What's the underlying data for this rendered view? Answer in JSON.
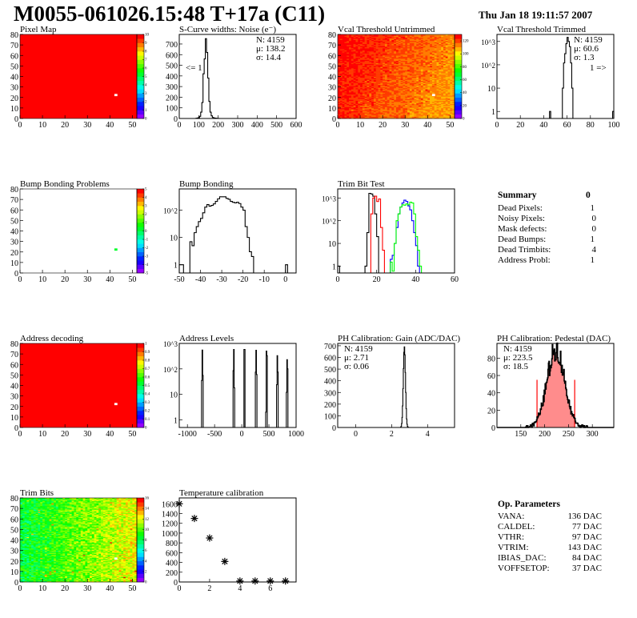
{
  "header": {
    "title": "M0055-061026.15:48 T+17a (C11)",
    "date": "Thu Jan 18 19:11:57 2007"
  },
  "colors": {
    "red": "#ff0000",
    "blue": "#0000ff",
    "green": "#00ff00",
    "black": "#000000"
  },
  "chart_data": [
    {
      "id": "pixel-map",
      "type": "heatmap",
      "title": "Pixel Map",
      "xlim": [
        0,
        52
      ],
      "ylim": [
        0,
        80
      ],
      "xticks": [
        0,
        10,
        20,
        30,
        40,
        50
      ],
      "yticks": [
        0,
        10,
        20,
        30,
        40,
        50,
        60,
        70,
        80
      ],
      "zlim": [
        0,
        10
      ],
      "zticks": [
        0,
        1,
        2,
        3,
        4,
        5,
        6,
        7,
        8,
        9,
        10
      ],
      "fill_value": 10,
      "dead_pixels": [
        [
          42,
          22
        ]
      ],
      "special_pixels": []
    },
    {
      "id": "s-curve-widths",
      "type": "histogram",
      "title": "S-Curve widths: Noise (e⁻)",
      "xlim": [
        0,
        600
      ],
      "ylim": [
        0,
        790
      ],
      "log": false,
      "xticks": [
        0,
        100,
        200,
        300,
        400,
        500,
        600
      ],
      "yticks": [
        0,
        100,
        200,
        300,
        400,
        500,
        600,
        700
      ],
      "bin_width": 6,
      "series": [
        {
          "color": "#000000",
          "start": 86,
          "values": [
            2,
            4,
            8,
            20,
            60,
            150,
            420,
            560,
            750,
            620,
            380,
            160,
            60,
            25,
            10,
            5,
            3,
            2,
            1,
            1
          ]
        }
      ],
      "stats": [
        "N: 4159",
        "μ: 138.2",
        "σ: 14.4"
      ],
      "annotation": "<= 1"
    },
    {
      "id": "vcal-threshold-untrimmed",
      "type": "heatmap",
      "title": "Vcal Threshold Untrimmed",
      "xlim": [
        0,
        52
      ],
      "ylim": [
        0,
        80
      ],
      "xticks": [
        0,
        10,
        20,
        30,
        40,
        50
      ],
      "yticks": [
        0,
        10,
        20,
        30,
        40,
        50,
        60,
        70,
        80
      ],
      "zlim": [
        0,
        130
      ],
      "zticks": [
        0,
        20,
        40,
        60,
        80,
        100,
        120
      ],
      "pattern": {
        "left": 123,
        "right": 108,
        "top_boost": 5,
        "noise": 5
      },
      "dead_pixels": [
        [
          42,
          22
        ]
      ]
    },
    {
      "id": "vcal-threshold-trimmed",
      "type": "histogram",
      "title": "Vcal Threshold Trimmed",
      "xlim": [
        0,
        100
      ],
      "ylim": [
        0.5,
        2000
      ],
      "log": true,
      "xticks": [
        0,
        20,
        40,
        60,
        80,
        100
      ],
      "yticks": [
        1,
        10,
        100,
        1000
      ],
      "ytick_labels": [
        "1",
        "10",
        "10^2",
        "10^3"
      ],
      "bin_width": 1,
      "series": [
        {
          "color": "#000000",
          "bins": [
            [
              45,
              1
            ],
            [
              56,
              10
            ],
            [
              57,
              120
            ],
            [
              58,
              300
            ],
            [
              59,
              800
            ],
            [
              60,
              1500
            ],
            [
              61,
              1000
            ],
            [
              62,
              600
            ],
            [
              63,
              120
            ],
            [
              64,
              10
            ],
            [
              99,
              1
            ]
          ]
        }
      ],
      "stats": [
        "N: 4159",
        "μ: 60.6",
        "σ:  1.3"
      ],
      "annotation": "1 =>"
    },
    {
      "id": "bump-bonding-problems",
      "type": "heatmap",
      "title": "Bump Bonding Problems",
      "xlim": [
        0,
        52
      ],
      "ylim": [
        0,
        80
      ],
      "xticks": [
        0,
        10,
        20,
        30,
        40,
        50
      ],
      "yticks": [
        0,
        10,
        20,
        30,
        40,
        50,
        60,
        70,
        80
      ],
      "zlim": [
        -5,
        5
      ],
      "zticks": [
        -5,
        -4,
        -3,
        -2,
        -1,
        0,
        1,
        2,
        3,
        4,
        5
      ],
      "empty": true,
      "special_pixels": [
        [
          42,
          22,
          0
        ]
      ],
      "dead_pixels": []
    },
    {
      "id": "bump-bonding",
      "type": "histogram",
      "title": "Bump Bonding",
      "xlim": [
        -50,
        5
      ],
      "ylim": [
        0.5,
        600
      ],
      "log": true,
      "xticks": [
        -50,
        -40,
        -30,
        -20,
        -10,
        0
      ],
      "yticks": [
        1,
        10,
        100
      ],
      "ytick_labels": [
        "1",
        "10",
        "10^2"
      ],
      "bin_width": 1,
      "series": [
        {
          "color": "#000000",
          "bins": [
            [
              -50,
              1
            ],
            [
              -49,
              1
            ],
            [
              -45,
              7
            ],
            [
              -44,
              5
            ],
            [
              -43,
              15
            ],
            [
              -42,
              25
            ],
            [
              -41,
              38
            ],
            [
              -40,
              50
            ],
            [
              -39,
              80
            ],
            [
              -38,
              130
            ],
            [
              -37,
              160
            ],
            [
              -36,
              140
            ],
            [
              -35,
              150
            ],
            [
              -34,
              170
            ],
            [
              -33,
              210
            ],
            [
              -32,
              260
            ],
            [
              -31,
              310
            ],
            [
              -30,
              310
            ],
            [
              -29,
              310
            ],
            [
              -28,
              270
            ],
            [
              -27,
              250
            ],
            [
              -26,
              210
            ],
            [
              -25,
              195
            ],
            [
              -24,
              185
            ],
            [
              -23,
              195
            ],
            [
              -22,
              175
            ],
            [
              -21,
              130
            ],
            [
              -20,
              100
            ],
            [
              -19,
              25
            ],
            [
              -18,
              10
            ],
            [
              -17,
              3
            ],
            [
              -16,
              2
            ],
            [
              0,
              1
            ]
          ]
        }
      ]
    },
    {
      "id": "trim-bit-test",
      "type": "histogram",
      "title": "Trim Bit Test",
      "xlim": [
        0,
        60
      ],
      "ylim": [
        0.5,
        2500
      ],
      "log": true,
      "xticks": [
        0,
        20,
        40,
        60
      ],
      "yticks": [
        1,
        10,
        100,
        1000
      ],
      "ytick_labels": [
        "1",
        "10",
        "10^2",
        "10^3"
      ],
      "bin_width": 1,
      "series": [
        {
          "color": "#000000",
          "bins": [
            [
              0,
              1
            ],
            [
              14,
              1
            ],
            [
              15,
              30
            ],
            [
              16,
              1600
            ],
            [
              17,
              1500
            ],
            [
              18,
              1200
            ],
            [
              19,
              200
            ],
            [
              20,
              20
            ]
          ]
        },
        {
          "color": "#ff0000",
          "bins": [
            [
              17,
              200
            ],
            [
              18,
              1000
            ],
            [
              19,
              1200
            ],
            [
              20,
              700
            ],
            [
              21,
              900
            ],
            [
              22,
              50
            ],
            [
              23,
              5
            ]
          ]
        },
        {
          "color": "#0000ff",
          "bins": [
            [
              27,
              2
            ],
            [
              28,
              3
            ],
            [
              29,
              10
            ],
            [
              30,
              50
            ],
            [
              31,
              200
            ],
            [
              32,
              400
            ],
            [
              33,
              600
            ],
            [
              34,
              800
            ],
            [
              35,
              700
            ],
            [
              36,
              450
            ],
            [
              37,
              300
            ],
            [
              38,
              100
            ],
            [
              39,
              30
            ],
            [
              40,
              8
            ],
            [
              41,
              1
            ]
          ]
        },
        {
          "color": "#00ff00",
          "bins": [
            [
              27,
              1.5
            ],
            [
              28,
              0.6
            ],
            [
              29,
              10
            ],
            [
              30,
              100
            ],
            [
              31,
              200
            ],
            [
              32,
              400
            ],
            [
              33,
              500
            ],
            [
              34,
              480
            ],
            [
              35,
              550
            ],
            [
              36,
              500
            ],
            [
              37,
              650
            ],
            [
              38,
              600
            ],
            [
              39,
              200
            ],
            [
              40,
              20
            ],
            [
              41,
              5
            ],
            [
              42,
              1
            ]
          ]
        }
      ]
    },
    {
      "id": "address-decoding",
      "type": "heatmap",
      "title": "Address decoding",
      "xlim": [
        0,
        52
      ],
      "ylim": [
        0,
        80
      ],
      "xticks": [
        0,
        10,
        20,
        30,
        40,
        50
      ],
      "yticks": [
        0,
        10,
        20,
        30,
        40,
        50,
        60,
        70,
        80
      ],
      "zlim": [
        0,
        1
      ],
      "zticks": [
        0,
        0.1,
        0.2,
        0.3,
        0.4,
        0.5,
        0.6,
        0.7,
        0.8,
        0.9,
        1
      ],
      "fill_value": 1,
      "dead_pixels": [
        [
          42,
          22
        ]
      ],
      "special_pixels": []
    },
    {
      "id": "address-levels",
      "type": "histogram",
      "title": "Address Levels",
      "xlim": [
        -1150,
        1000
      ],
      "ylim": [
        0.5,
        1000
      ],
      "log": true,
      "xticks": [
        -1000,
        -500,
        0,
        500,
        1000
      ],
      "yticks": [
        1,
        10,
        100,
        1000
      ],
      "ytick_labels": [
        "1",
        "10",
        "10^2",
        "10^3"
      ],
      "bin_width": 10,
      "series": [
        {
          "color": "#000000",
          "bins": [
            [
              -740,
              35
            ],
            [
              -730,
              550
            ],
            [
              -720,
              55
            ],
            [
              -160,
              85
            ],
            [
              -150,
              580
            ],
            [
              -140,
              18
            ],
            [
              40,
              580
            ],
            [
              50,
              580
            ],
            [
              250,
              75
            ],
            [
              260,
              540
            ],
            [
              270,
              60
            ],
            [
              440,
              2
            ],
            [
              450,
              500
            ],
            [
              460,
              330
            ],
            [
              640,
              24
            ],
            [
              650,
              330
            ],
            [
              660,
              75
            ],
            [
              820,
              12
            ],
            [
              830,
              230
            ],
            [
              840,
              100
            ]
          ]
        }
      ]
    },
    {
      "id": "ph-calibration-gain",
      "type": "histogram",
      "title": "PH Calibration: Gain (ADC/DAC)",
      "xlim": [
        -1,
        5.5
      ],
      "ylim": [
        0,
        720
      ],
      "log": false,
      "xticks": [
        0,
        2,
        4
      ],
      "yticks": [
        0,
        100,
        200,
        300,
        400,
        500,
        600,
        700
      ],
      "bin_width": 0.025,
      "gaussian": {
        "n": 4159,
        "mean": 2.71,
        "sigma": 0.06,
        "range": [
          2.5,
          2.95
        ]
      },
      "series": [
        {
          "color": "#000000"
        }
      ],
      "stats": [
        "N: 4159",
        "μ: 2.71",
        "σ: 0.06"
      ],
      "stats_pos": "top-left"
    },
    {
      "id": "ph-calibration-pedestal",
      "type": "histogram",
      "title": "PH Calibration: Pedestal (DAC)",
      "xlim": [
        100,
        345
      ],
      "ylim": [
        0,
        97
      ],
      "log": false,
      "xticks": [
        150,
        200,
        250,
        300
      ],
      "yticks": [
        0,
        20,
        40,
        60,
        80
      ],
      "bin_width": 1,
      "gaussian": {
        "n": 4159,
        "mean": 223.5,
        "sigma": 18.5,
        "range": [
          160,
          290
        ]
      },
      "fit_range": [
        184,
        263
      ],
      "fit_line_height": 55,
      "series": [
        {
          "color": "#000000"
        }
      ],
      "stats": [
        "N: 4159",
        "μ: 223.5",
        "σ: 18.5"
      ],
      "stats_colors": [
        "#000000",
        "#ff0000",
        "#ff0000"
      ],
      "stats_pos": "top-left"
    },
    {
      "id": "trim-bits",
      "type": "heatmap",
      "title": "Trim Bits",
      "xlim": [
        0,
        52
      ],
      "ylim": [
        0,
        80
      ],
      "xticks": [
        0,
        10,
        20,
        30,
        40,
        50
      ],
      "yticks": [
        0,
        10,
        20,
        30,
        40,
        50,
        60,
        70,
        80
      ],
      "zlim": [
        0,
        16
      ],
      "zticks": [
        0,
        2,
        4,
        6,
        8,
        10,
        12,
        14,
        16
      ],
      "pattern": {
        "left": 8.3,
        "right": 12.2,
        "top_boost": 0,
        "noise": 1.6
      },
      "dead_pixels": [
        [
          42,
          22
        ]
      ]
    },
    {
      "id": "temperature-calibration",
      "type": "scatter",
      "title": "Temperature calibration",
      "xlim": [
        0,
        7.7
      ],
      "ylim": [
        0,
        1720
      ],
      "log": false,
      "xticks": [
        0,
        2,
        4,
        6
      ],
      "yticks": [
        0,
        200,
        400,
        600,
        800,
        1000,
        1200,
        1400,
        1600
      ],
      "points": [
        [
          0,
          1600
        ],
        [
          1,
          1300
        ],
        [
          2,
          900
        ],
        [
          3,
          420
        ],
        [
          4,
          20
        ],
        [
          5,
          20
        ],
        [
          6,
          20
        ],
        [
          7,
          20
        ]
      ]
    }
  ],
  "summary": {
    "title": "Summary",
    "total": "0",
    "rows": [
      {
        "label": "Dead Pixels:",
        "value": "1"
      },
      {
        "label": "Noisy Pixels:",
        "value": "0"
      },
      {
        "label": "Mask defects:",
        "value": "0"
      },
      {
        "label": "Dead Bumps:",
        "value": "1"
      },
      {
        "label": "Dead Trimbits:",
        "value": "4"
      },
      {
        "label": "Address Probl:",
        "value": "1"
      }
    ]
  },
  "op_parameters": {
    "title": "Op. Parameters",
    "rows": [
      {
        "label": "VANA:",
        "value": "136 DAC"
      },
      {
        "label": "CALDEL:",
        "value": "77 DAC"
      },
      {
        "label": "VTHR:",
        "value": "97 DAC"
      },
      {
        "label": "VTRIM:",
        "value": "143 DAC"
      },
      {
        "label": "IBIAS_DAC:",
        "value": "84 DAC"
      },
      {
        "label": "VOFFSETOP:",
        "value": "37 DAC"
      }
    ]
  }
}
